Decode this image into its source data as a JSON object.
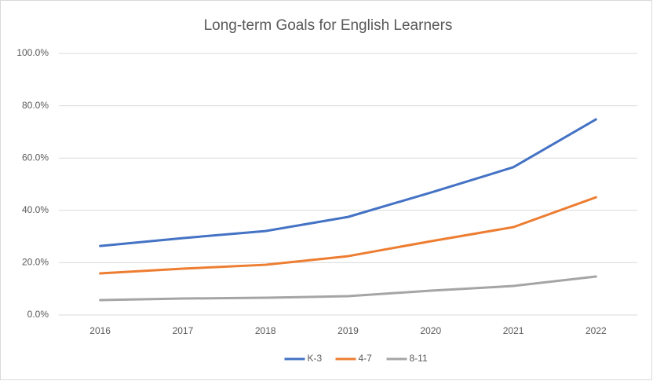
{
  "chart_data": {
    "type": "line",
    "title": "Long-term Goals for English Learners",
    "categories": [
      "2016",
      "2017",
      "2018",
      "2019",
      "2020",
      "2021",
      "2022"
    ],
    "series": [
      {
        "name": "K-3",
        "color": "#4472c4",
        "values": [
          26.4,
          29.4,
          32.1,
          37.5,
          46.8,
          56.5,
          74.8
        ]
      },
      {
        "name": "4-7",
        "color": "#ed7d31",
        "values": [
          15.9,
          17.7,
          19.2,
          22.5,
          28.2,
          33.6,
          45.0
        ]
      },
      {
        "name": "8-11",
        "color": "#a5a5a5",
        "values": [
          5.7,
          6.3,
          6.6,
          7.2,
          9.3,
          11.1,
          14.7
        ]
      }
    ],
    "ylim": [
      0,
      100
    ],
    "yticks": [
      {
        "value": 0,
        "label": "0.0%"
      },
      {
        "value": 20,
        "label": "20.0%"
      },
      {
        "value": 40,
        "label": "40.0%"
      },
      {
        "value": 60,
        "label": "60.0%"
      },
      {
        "value": 80,
        "label": "80.0%"
      },
      {
        "value": 100,
        "label": "100.0%"
      }
    ],
    "grid": true,
    "legend": "bottom"
  }
}
